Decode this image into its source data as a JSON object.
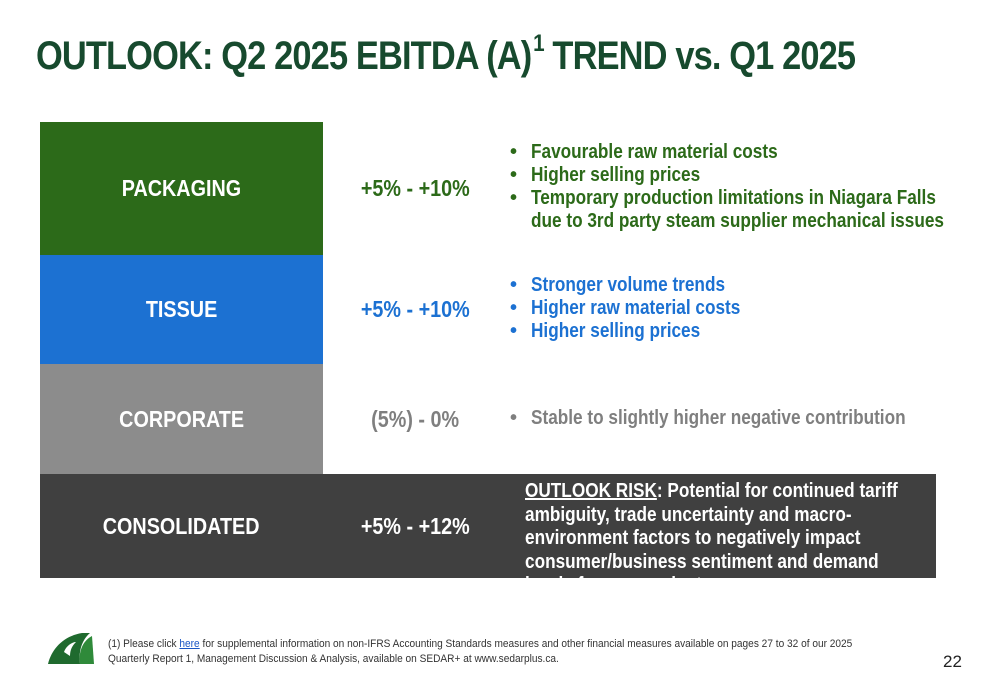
{
  "title": {
    "main": "OUTLOOK: Q2 2025 EBITDA (A)",
    "superscript": "1",
    "suffix": " TREND vs. Q1 2025"
  },
  "segments": [
    {
      "label": "PACKAGING",
      "range": "+5% - +10%",
      "color": "#2c6a19",
      "text_color": "#2c6a19",
      "bullets": [
        "Favourable raw material costs",
        "Higher selling prices",
        "Temporary production limitations in Niagara Falls",
        "due to 3rd party steam supplier mechanical issues"
      ]
    },
    {
      "label": "TISSUE",
      "range": "+5% - +10%",
      "color": "#1c71d2",
      "text_color": "#1c71d2",
      "bullets": [
        "Stronger volume trends",
        "Higher raw material costs",
        "Higher selling prices"
      ]
    },
    {
      "label": "CORPORATE",
      "range": "(5%) - 0%",
      "color": "#8c8c8c",
      "text_color": "#7f7f7f",
      "bullets": [
        "Stable to slightly higher negative contribution"
      ]
    },
    {
      "label": "CONSOLIDATED",
      "range": "+5% - +12%",
      "color": "#404040",
      "text_color": "#ffffff"
    }
  ],
  "outlook_risk": {
    "heading": "OUTLOOK RISK",
    "text": ": Potential for continued tariff ambiguity, trade uncertainty and macro-environment factors to negatively impact consumer/business sentiment and demand levels for our products."
  },
  "footer": {
    "note_prefix": "(1) Please click ",
    "link_text": "here",
    "note_suffix": " for supplemental information on non-IFRS Accounting Standards measures and other financial measures available on pages 27 to 32 of our 2025 Quarterly Report 1, Management Discussion & Analysis, available on SEDAR+ at www.sedarplus.ca.",
    "page_number": "22"
  },
  "icons": {
    "logo": "company-logo-icon",
    "bullet": "•"
  }
}
